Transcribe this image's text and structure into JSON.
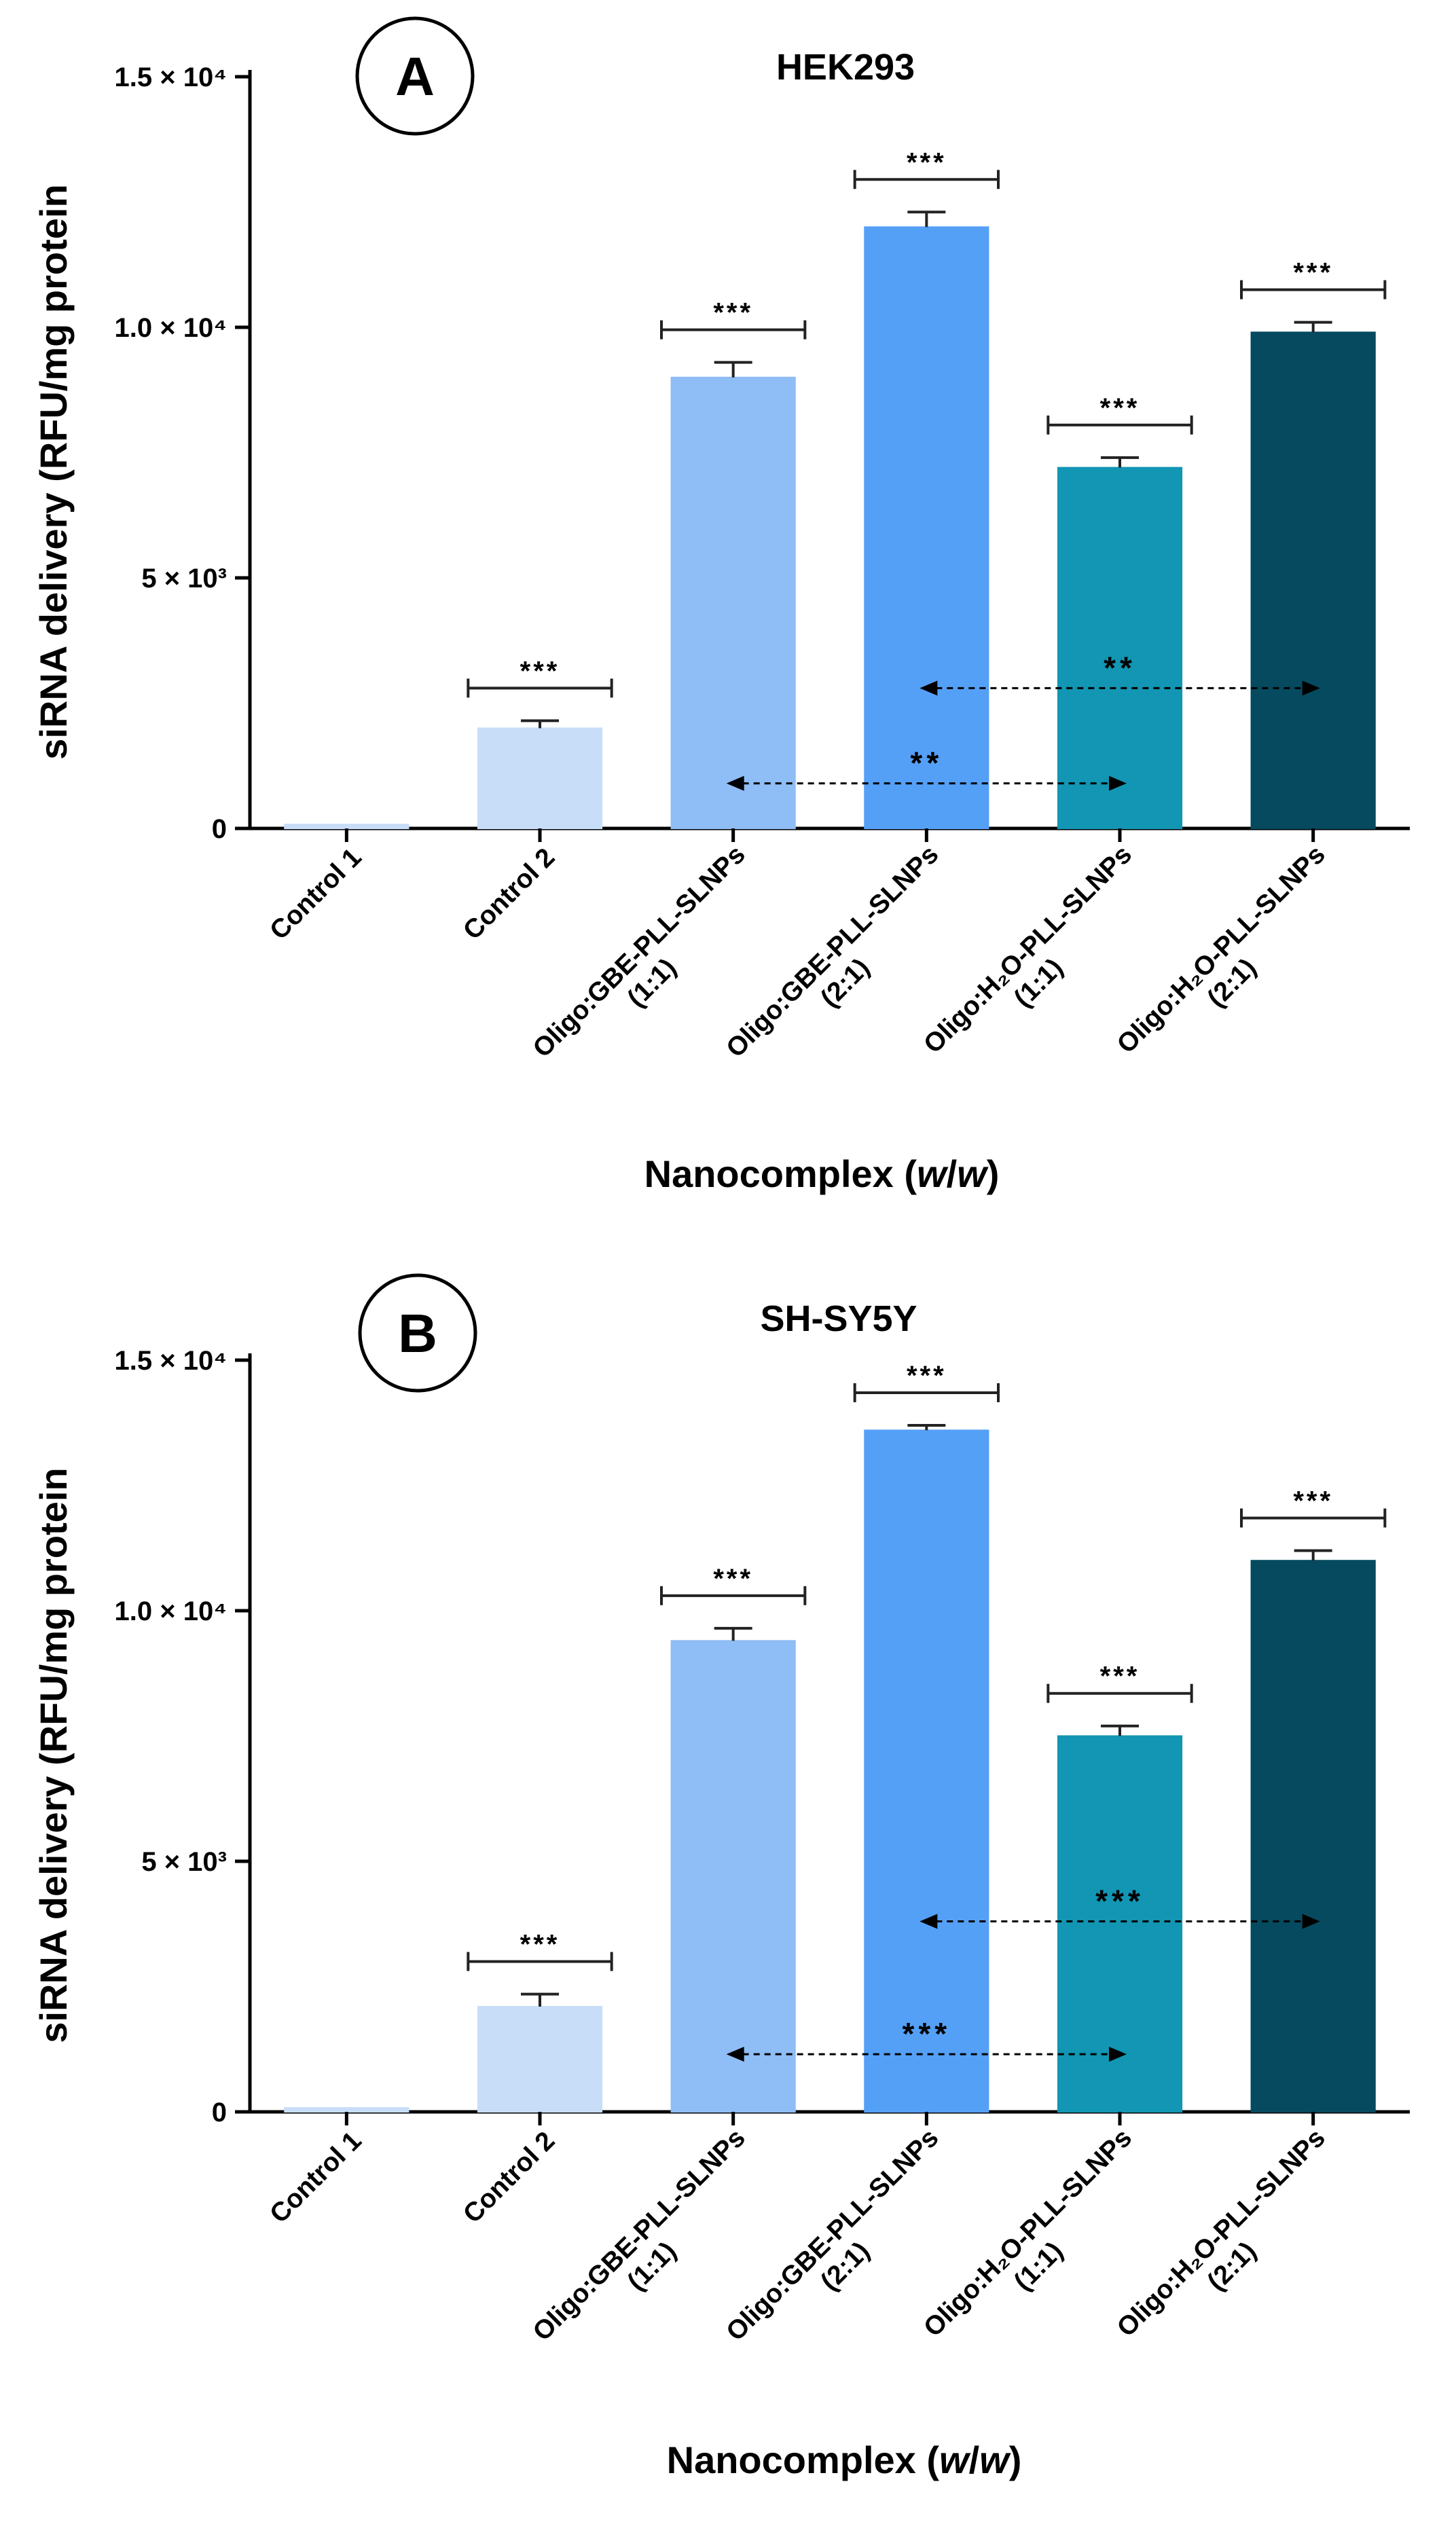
{
  "chart_data": [
    {
      "type": "bar",
      "panel": "A",
      "title": "HEK293",
      "ylabel": "siRNA delivery (RFU/mg protein",
      "xlabel": "Nanocomplex (w/w)",
      "ylim": [
        0,
        15000
      ],
      "y_ticks": [
        {
          "value": 0,
          "label": "0"
        },
        {
          "value": 5000,
          "label": "5 × 10³"
        },
        {
          "value": 10000,
          "label": "1.0 × 10⁴"
        },
        {
          "value": 15000,
          "label": "1.5 × 10⁴"
        }
      ],
      "categories": [
        [
          "Control 1"
        ],
        [
          "Control 2"
        ],
        [
          "Oligo:GBE-PLL-SLNPs",
          "(1:1)"
        ],
        [
          "Oligo:GBE-PLL-SLNPs",
          "(2:1)"
        ],
        [
          "Oligo:H₂O-PLL-SLNPs",
          "(1:1)"
        ],
        [
          "Oligo:H₂O-PLL-SLNPs",
          "(2:1)"
        ]
      ],
      "values": [
        80,
        2000,
        9000,
        12000,
        7200,
        9900
      ],
      "errors": [
        0,
        150,
        300,
        300,
        200,
        200
      ],
      "significance": [
        "",
        "***",
        "***",
        "***",
        "***",
        "***"
      ],
      "bar_colors": [
        "#c8ddf7",
        "#c8ddf7",
        "#8fbdf5",
        "#55a0f7",
        "#1296b3",
        "#054a5e"
      ],
      "comparisons": [
        {
          "from": 2,
          "to": 4,
          "label": "**",
          "y": 900
        },
        {
          "from": 3,
          "to": 5,
          "label": "**",
          "y": 2800
        }
      ]
    },
    {
      "type": "bar",
      "panel": "B",
      "title": "SH-SY5Y",
      "ylabel": "siRNA delivery (RFU/mg protein",
      "xlabel": "Nanocomplex (w/w)",
      "ylim": [
        0,
        15000
      ],
      "y_ticks": [
        {
          "value": 0,
          "label": "0"
        },
        {
          "value": 5000,
          "label": "5 × 10³"
        },
        {
          "value": 10000,
          "label": "1.0 × 10⁴"
        },
        {
          "value": 15000,
          "label": "1.5 × 10⁴"
        }
      ],
      "categories": [
        [
          "Control 1"
        ],
        [
          "Control 2"
        ],
        [
          "Oligo:GBE-PLL-SLNPs",
          "(1:1)"
        ],
        [
          "Oligo:GBE-PLL-SLNPs",
          "(2:1)"
        ],
        [
          "Oligo:H₂O-PLL-SLNPs",
          "(1:1)"
        ],
        [
          "Oligo:H₂O-PLL-SLNPs",
          "(2:1)"
        ]
      ],
      "values": [
        80,
        2100,
        9400,
        13600,
        7500,
        11000
      ],
      "errors": [
        0,
        250,
        250,
        100,
        200,
        200
      ],
      "significance": [
        "",
        "***",
        "***",
        "***",
        "***",
        "***"
      ],
      "bar_colors": [
        "#c8ddf7",
        "#c8ddf7",
        "#8fbdf5",
        "#55a0f7",
        "#1296b3",
        "#054a5e"
      ],
      "comparisons": [
        {
          "from": 2,
          "to": 4,
          "label": "***",
          "y": 1150
        },
        {
          "from": 3,
          "to": 5,
          "label": "***",
          "y": 3800
        }
      ]
    }
  ]
}
